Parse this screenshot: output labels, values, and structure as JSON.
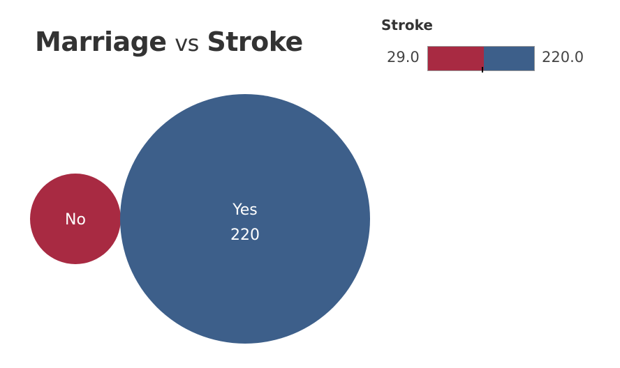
{
  "title": {
    "part1": "Marriage",
    "part2": "vs",
    "part3": "Stroke"
  },
  "legend": {
    "title": "Stroke",
    "min_label": "29.0",
    "max_label": "220.0",
    "marker_value": 129,
    "colors": {
      "low": "#a82a42",
      "high": "#3d5f8a"
    }
  },
  "chart_data": {
    "type": "bubble",
    "title": "Marriage vs Stroke",
    "size_measure": "Stroke",
    "color_range": [
      29.0,
      220.0
    ],
    "bubbles": [
      {
        "category": "No",
        "value": 29,
        "label": "No",
        "value_label": "",
        "color": "#a82a42"
      },
      {
        "category": "Yes",
        "value": 220,
        "label": "Yes",
        "value_label": "220",
        "color": "#3d5f8a"
      }
    ]
  }
}
